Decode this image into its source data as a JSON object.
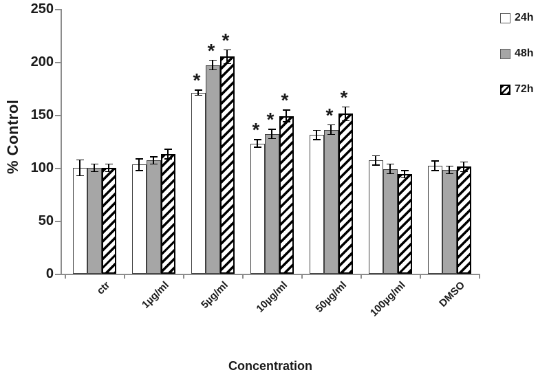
{
  "chart_data": {
    "type": "bar",
    "title": "",
    "xlabel": "Concentration",
    "ylabel": "% Control",
    "ylim": [
      0,
      250
    ],
    "yticks": [
      0,
      50,
      100,
      150,
      200,
      250
    ],
    "categories": [
      "ctr",
      "1µg/ml",
      "5µg/ml",
      "10µg/ml",
      "50µg/ml",
      "100µg/ml",
      "DMSO"
    ],
    "series": [
      {
        "name": "24h",
        "fill": "#ffffff",
        "pattern": "solid",
        "values": [
          100,
          103,
          171,
          123,
          131,
          107,
          102
        ],
        "errors": [
          8,
          6,
          3,
          4,
          5,
          5,
          5
        ],
        "significant": [
          false,
          false,
          true,
          true,
          false,
          false,
          false
        ]
      },
      {
        "name": "48h",
        "fill": "#a6a6a6",
        "pattern": "solid",
        "values": [
          100,
          107,
          197,
          132,
          136,
          99,
          98
        ],
        "errors": [
          4,
          4,
          5,
          5,
          5,
          5,
          4
        ],
        "significant": [
          false,
          false,
          true,
          true,
          true,
          false,
          false
        ]
      },
      {
        "name": "72h",
        "fill": "#ffffff",
        "pattern": "diagonal-hatch",
        "values": [
          100,
          113,
          205,
          149,
          151,
          94,
          101
        ],
        "errors": [
          4,
          5,
          7,
          6,
          7,
          4,
          5
        ],
        "significant": [
          false,
          false,
          true,
          true,
          true,
          false,
          false
        ]
      }
    ],
    "significance_marker": "*",
    "legend_position": "top-right",
    "grid": false,
    "background_color": "#ffffff",
    "axis_color": "#8c8c8c",
    "bar_border_color": "#3f3f3f",
    "hatch_color": "#000000",
    "error_bar_color": "#000000",
    "text_color": "#1a1a1a"
  }
}
